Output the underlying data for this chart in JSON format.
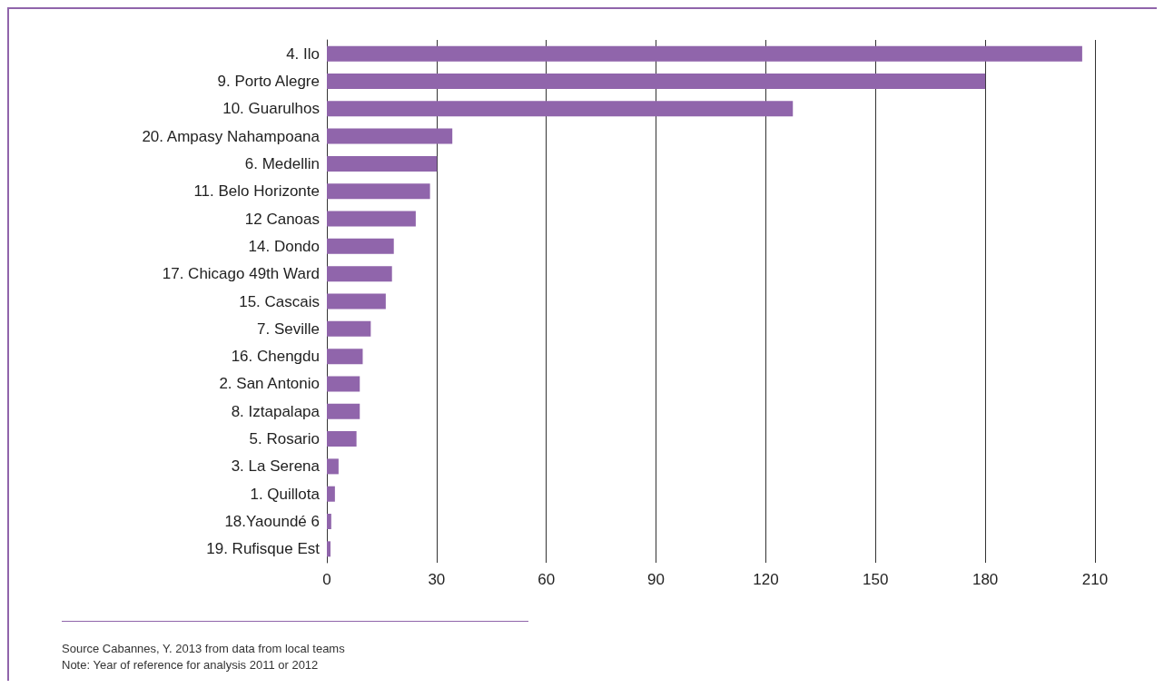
{
  "chart_data": {
    "type": "bar",
    "orientation": "horizontal",
    "categories": [
      "4. Ilo",
      "9. Porto Alegre",
      "10. Guarulhos",
      "20. Ampasy Nahampoana",
      "6. Medellin",
      "11. Belo Horizonte",
      "12 Canoas",
      "14. Dondo",
      "17. Chicago 49th Ward",
      "15. Cascais",
      "7. Seville",
      "16. Chengdu",
      "2. San Antonio",
      "8. Iztapalapa",
      "5. Rosario",
      "3. La Serena",
      "1. Quillota",
      "18.Yaoundé 6",
      "19. Rufisque Est"
    ],
    "values": [
      206.5,
      180,
      127.4,
      34.3,
      30.1,
      28.2,
      24.3,
      18.3,
      17.8,
      16.1,
      12,
      9.8,
      9,
      9,
      8.1,
      3.2,
      2.2,
      1.2,
      1
    ],
    "color": "#9065ab",
    "xlim": [
      0,
      210
    ],
    "xticks": [
      0,
      30,
      60,
      90,
      120,
      150,
      180,
      210
    ],
    "grid": "x",
    "annotations": [
      "Source Cabannes, Y. 2013 from data from local teams",
      "Note: Year of reference for analysis 2011 or 2012"
    ]
  }
}
